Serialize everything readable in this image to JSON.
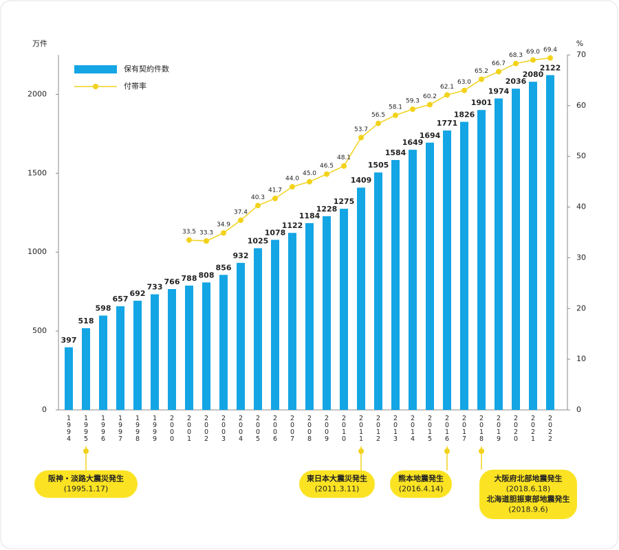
{
  "chart_data": {
    "type": "bar",
    "y_label": "万件",
    "y2_label": "%",
    "categories": [
      "1994",
      "1995",
      "1996",
      "1997",
      "1998",
      "1999",
      "2000",
      "2001",
      "2002",
      "2003",
      "2004",
      "2005",
      "2006",
      "2007",
      "2008",
      "2009",
      "2010",
      "2011",
      "2012",
      "2013",
      "2014",
      "2015",
      "2016",
      "2017",
      "2018",
      "2019",
      "2020",
      "2021",
      "2022"
    ],
    "series": [
      {
        "name": "保有契約件数",
        "type": "bar",
        "color": "#14a5e4",
        "values": [
          397,
          518,
          598,
          657,
          692,
          733,
          766,
          788,
          808,
          856,
          932,
          1025,
          1078,
          1122,
          1184,
          1228,
          1275,
          1409,
          1505,
          1584,
          1649,
          1694,
          1771,
          1826,
          1901,
          1974,
          2036,
          2080,
          2122
        ]
      },
      {
        "name": "付帯率",
        "type": "line",
        "axis": "y2",
        "color": "#f2d21b",
        "values": [
          null,
          null,
          null,
          null,
          null,
          null,
          null,
          33.5,
          33.3,
          34.9,
          37.4,
          40.3,
          41.7,
          44.0,
          45.0,
          46.5,
          48.1,
          53.7,
          56.5,
          58.1,
          59.3,
          60.2,
          62.1,
          63.0,
          65.2,
          66.7,
          68.3,
          69.0,
          69.4
        ],
        "value_labels": [
          null,
          null,
          null,
          null,
          null,
          null,
          null,
          "33.5",
          "33.3",
          "34.9",
          "37.4",
          "40.3",
          "41.7",
          "44.0",
          "45.0",
          "46.5",
          "48.1",
          "53.7",
          "56.5",
          "58.1",
          "59.3",
          "60.2",
          "62.1",
          "63.0",
          "65.2",
          "66.7",
          "68.3",
          "69.0",
          "69.4"
        ]
      }
    ],
    "ylim": [
      0,
      2250
    ],
    "yticks": [
      0,
      500,
      1000,
      1500,
      2000
    ],
    "y2lim": [
      0,
      70
    ],
    "y2ticks": [
      0,
      10,
      20,
      30,
      40,
      50,
      60,
      70
    ],
    "legend": "top-left",
    "annotations": [
      {
        "lines": [
          "阪神・淡路大震災発生",
          "(1995.1.17)"
        ]
      },
      {
        "lines": [
          "東日本大震災発生",
          "(2011.3.11)"
        ]
      },
      {
        "lines": [
          "熊本地震発生",
          "(2016.4.14)"
        ]
      },
      {
        "lines": [
          "大阪府北部地震発生",
          "(2018.6.18)",
          "北海道胆振東部地震発生",
          "(2018.9.6)"
        ]
      }
    ]
  }
}
